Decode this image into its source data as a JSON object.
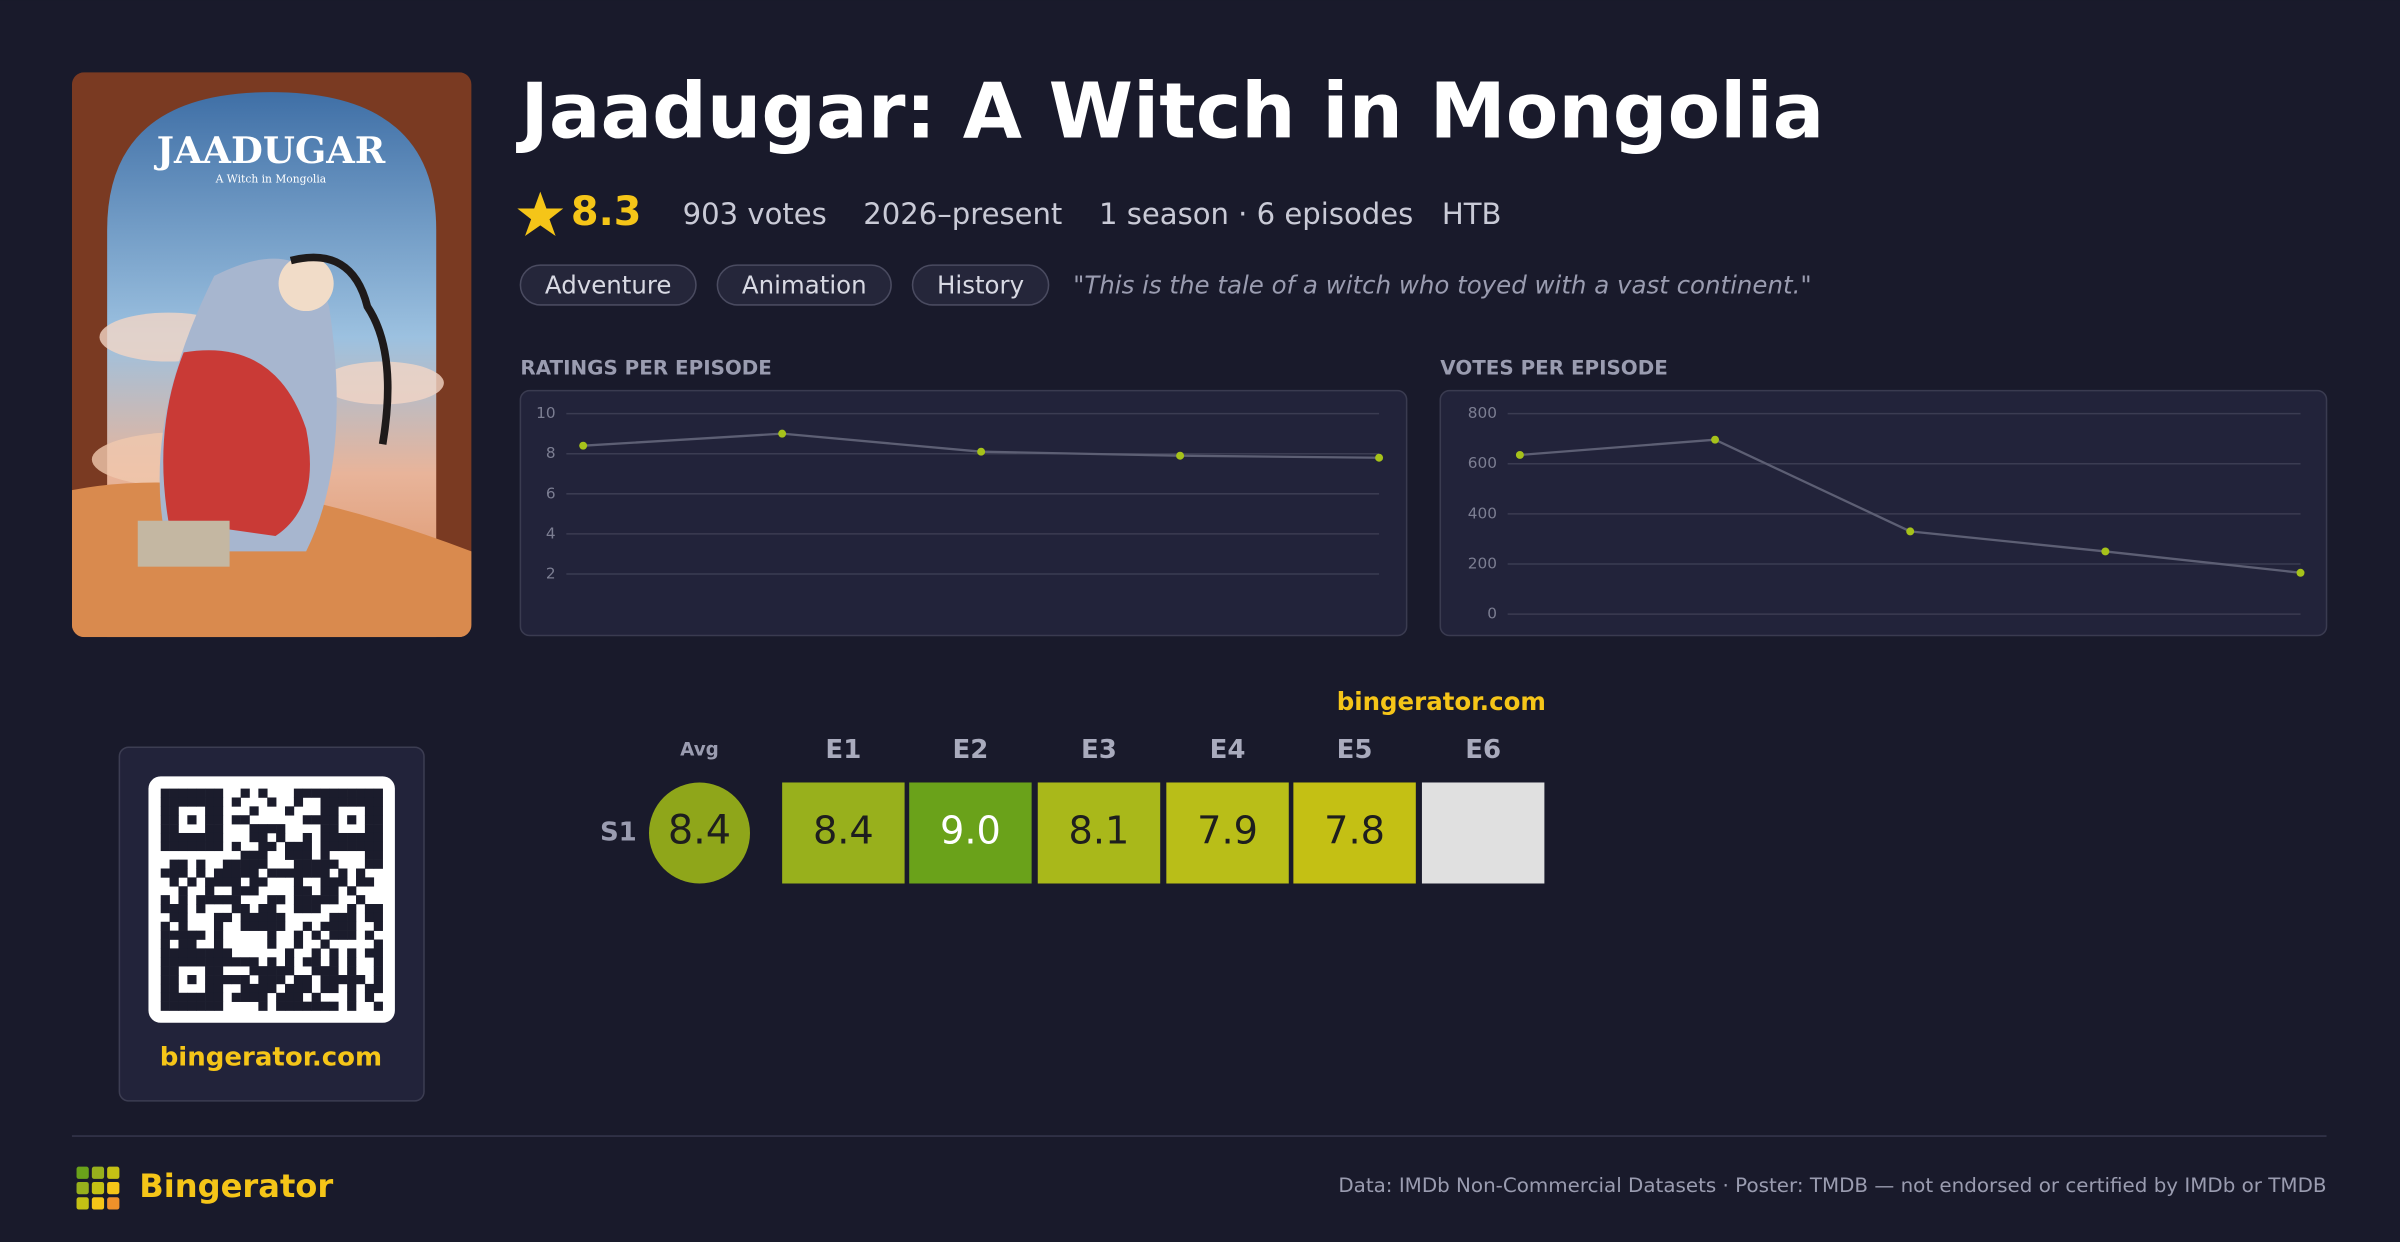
{
  "header": {
    "title": "Jaadugar: A Witch in Mongolia",
    "rating": "8.3",
    "votes": "903 votes",
    "years": "2026–present",
    "seasons": "1 season · 6 episodes",
    "network": "HTB",
    "genres": [
      "Adventure",
      "Animation",
      "History"
    ],
    "tagline": "\"This is the tale of a witch who toyed with a vast continent.\""
  },
  "poster": {
    "title": "JAADUGAR",
    "subtitle": "A Witch in Mongolia"
  },
  "chart_data": [
    {
      "type": "line",
      "title": "RATINGS PER EPISODE",
      "categories": [
        null,
        null,
        null,
        null,
        null
      ],
      "values": [
        8.4,
        9.0,
        8.1,
        7.9,
        7.8
      ],
      "color": "#a6c21a",
      "line_color": "#5d5f74",
      "ylim": [
        0,
        10
      ],
      "yticks": [
        2,
        4,
        6,
        8,
        10
      ],
      "grid": true
    },
    {
      "type": "line",
      "title": "VOTES PER EPISODE",
      "categories": [
        null,
        null,
        null,
        null,
        null
      ],
      "values": [
        635,
        696,
        330,
        250,
        165
      ],
      "color": "#a6c21a",
      "line_color": "#5d5f74",
      "ylim": [
        0,
        800
      ],
      "yticks": [
        0,
        200,
        400,
        600,
        800
      ],
      "grid": true
    }
  ],
  "heatmap": {
    "site": "bingerator.com",
    "avg_label": "Avg",
    "columns": [
      "E1",
      "E2",
      "E3",
      "E4",
      "E5",
      "E6"
    ],
    "rows": [
      {
        "label": "S1",
        "avg": "8.4",
        "avg_color": "#8fa61a",
        "cells": [
          {
            "value": "8.4",
            "color": "#98b01c",
            "text_color": "#1e1e1e"
          },
          {
            "value": "9.0",
            "color": "#6aa21a",
            "text_color": "#ffffff"
          },
          {
            "value": "8.1",
            "color": "#a9b81a",
            "text_color": "#1e1e1e"
          },
          {
            "value": "7.9",
            "color": "#b9be18",
            "text_color": "#1e1e1e"
          },
          {
            "value": "7.8",
            "color": "#c4c014",
            "text_color": "#1e1e1e"
          },
          {
            "value": null,
            "color": "#e0e0e0",
            "text_color": "#1e1e1e"
          }
        ]
      }
    ]
  },
  "qr": {
    "caption": "bingerator.com"
  },
  "footer": {
    "brand": "Bingerator",
    "attribution": "Data: IMDb Non-Commercial Datasets · Poster: TMDB — not endorsed or certified by IMDb or TMDB"
  }
}
